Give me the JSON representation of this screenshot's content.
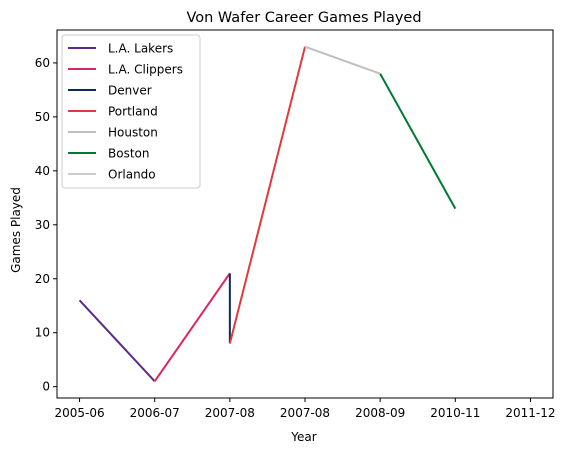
{
  "chart_data": {
    "type": "line",
    "title": "Von Wafer Career Games Played",
    "xlabel": "Year",
    "ylabel": "Games Played",
    "xticks": [
      "2005-06",
      "2006-07",
      "2007-08",
      "2007-08",
      "2008-09",
      "2010-11",
      "2011-12"
    ],
    "yticks": [
      0,
      10,
      20,
      30,
      40,
      50,
      60
    ],
    "ylim": [
      -2.1,
      66.1
    ],
    "xlim": [
      -0.3,
      6.3
    ],
    "grid": false,
    "legend_position": "top-left",
    "series": [
      {
        "name": "L.A. Lakers",
        "color": "#5b2a86",
        "points": [
          [
            0,
            16
          ],
          [
            1,
            1
          ]
        ]
      },
      {
        "name": "L.A. Clippers",
        "color": "#e0245e",
        "points": [
          [
            1,
            1
          ],
          [
            2,
            21
          ]
        ]
      },
      {
        "name": "Denver",
        "color": "#0d2a5c",
        "points": [
          [
            2,
            21
          ],
          [
            2,
            8
          ]
        ]
      },
      {
        "name": "Portland",
        "color": "#e03a3e",
        "points": [
          [
            2,
            8
          ],
          [
            3,
            63
          ]
        ]
      },
      {
        "name": "Houston",
        "color": "#bfbfbf",
        "points": [
          [
            3,
            63
          ],
          [
            4,
            58
          ]
        ]
      },
      {
        "name": "Boston",
        "color": "#007a33",
        "points": [
          [
            4,
            58
          ],
          [
            5,
            33
          ]
        ]
      },
      {
        "name": "Orlando",
        "color": "#c4ced4",
        "points": []
      }
    ]
  }
}
